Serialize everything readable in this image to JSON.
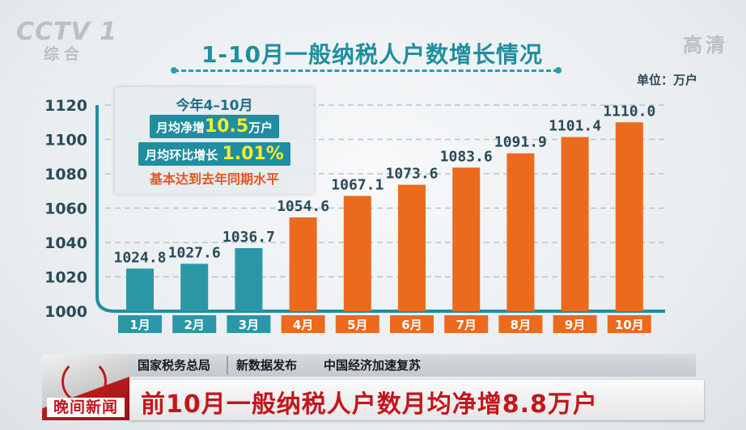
{
  "broadcast": {
    "channel_logo": "CCTV",
    "channel_number": "1",
    "channel_name": "综合",
    "quality": "高清"
  },
  "chart_data": {
    "type": "bar",
    "title": "1-10月一般纳税人户数增长情况",
    "unit_label": "单位：万户",
    "categories": [
      "1月",
      "2月",
      "3月",
      "4月",
      "5月",
      "6月",
      "7月",
      "8月",
      "9月",
      "10月"
    ],
    "values": [
      1024.8,
      1027.6,
      1036.7,
      1054.6,
      1067.1,
      1073.6,
      1083.6,
      1091.9,
      1101.4,
      1110.0
    ],
    "value_labels": [
      "1024.8",
      "1027.6",
      "1036.7",
      "1054.6",
      "1067.1",
      "1073.6",
      "1083.6",
      "1091.9",
      "1101.4",
      "1110.0"
    ],
    "series_colors": [
      "#2b97a6",
      "#2b97a6",
      "#2b97a6",
      "#ec6a1e",
      "#ec6a1e",
      "#ec6a1e",
      "#ec6a1e",
      "#ec6a1e",
      "#ec6a1e",
      "#ec6a1e"
    ],
    "ylim": [
      1000,
      1120
    ],
    "yticks": [
      1000,
      1020,
      1040,
      1060,
      1080,
      1100,
      1120
    ],
    "grid": true,
    "xlabel": "",
    "ylabel": ""
  },
  "info_box": {
    "period": "今年4–10月",
    "net_increase_label": "月均净增",
    "net_increase_value": "10.5",
    "net_increase_unit": "万户",
    "mom_label": "月均环比增长",
    "mom_value": "1.01%",
    "conclusion": "基本达到去年同期水平"
  },
  "news_bar": {
    "source": "国家税务总局",
    "topic1": "新数据发布",
    "topic2": "中国经济加速复苏",
    "headline": "前10月一般纳税人户数月均净增8.8万户",
    "program": "晚间新闻"
  }
}
